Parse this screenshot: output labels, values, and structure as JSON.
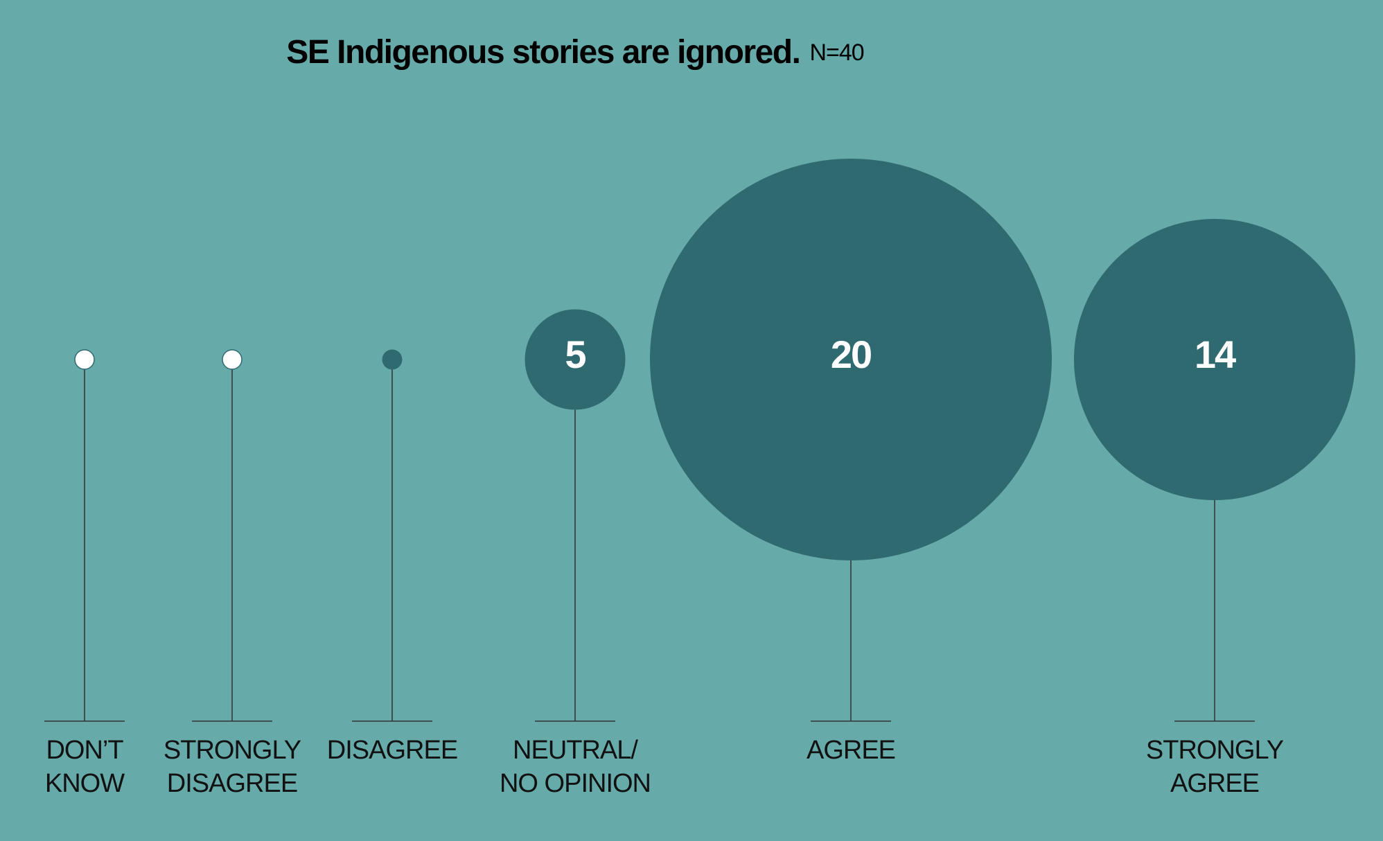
{
  "chart_data": {
    "type": "bubble",
    "title": "SE Indigenous stories are ignored.",
    "subtitle": "N=40",
    "categories": [
      [
        "DON’T",
        "KNOW"
      ],
      [
        "STRONGLY",
        "DISAGREE"
      ],
      [
        "DISAGREE"
      ],
      [
        "NEUTRAL/",
        "NO OPINION"
      ],
      [
        "AGREE"
      ],
      [
        "STRONGLY",
        "AGREE"
      ]
    ],
    "values": [
      0,
      0,
      1,
      5,
      20,
      14
    ],
    "color": "#2f6a70",
    "zero_color": "#ffffff",
    "background": "#66aaaa"
  }
}
